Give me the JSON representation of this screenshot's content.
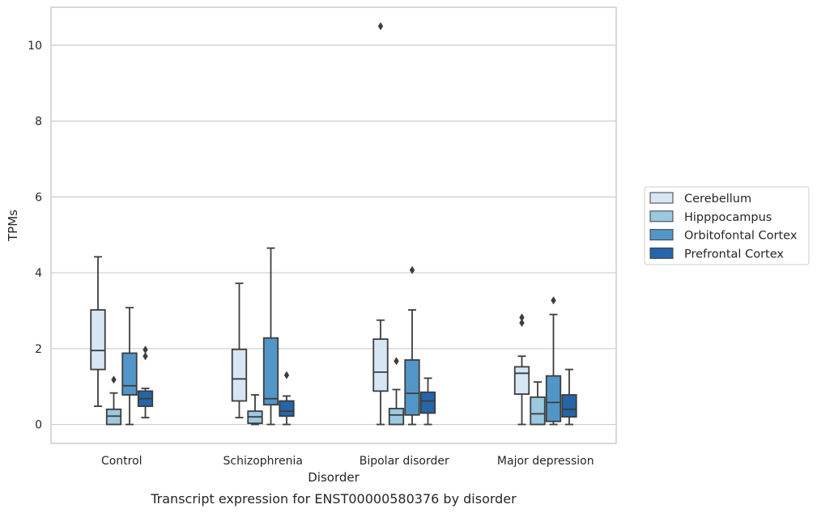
{
  "chart_data": {
    "type": "box",
    "caption": "Transcript expression for ENST00000580376 by disorder",
    "xlabel": "Disorder",
    "ylabel": "TPMs",
    "ylim": [
      -0.5,
      11.0
    ],
    "yticks": [
      0,
      2,
      4,
      6,
      8,
      10
    ],
    "grid": "horizontal",
    "legend_position": "right",
    "categories": [
      "Control",
      "Schizophrenia",
      "Bipolar disorder",
      "Major depression"
    ],
    "series": [
      {
        "name": "Cerebellum",
        "color": "#d6e6f4",
        "boxes": [
          {
            "whislo": 0.48,
            "q1": 1.45,
            "med": 1.95,
            "q3": 3.02,
            "whishi": 4.42,
            "fliers": []
          },
          {
            "whislo": 0.18,
            "q1": 0.62,
            "med": 1.2,
            "q3": 1.98,
            "whishi": 3.72,
            "fliers": []
          },
          {
            "whislo": 0.0,
            "q1": 0.88,
            "med": 1.38,
            "q3": 2.25,
            "whishi": 2.75,
            "fliers": [
              10.5
            ]
          },
          {
            "whislo": 0.0,
            "q1": 0.8,
            "med": 1.35,
            "q3": 1.52,
            "whishi": 1.8,
            "fliers": [
              2.82,
              2.68
            ]
          }
        ]
      },
      {
        "name": "Hipppocampus",
        "color": "#9cc8e0",
        "boxes": [
          {
            "whislo": 0.0,
            "q1": 0.0,
            "med": 0.22,
            "q3": 0.4,
            "whishi": 0.83,
            "fliers": [
              1.18
            ]
          },
          {
            "whislo": 0.0,
            "q1": 0.03,
            "med": 0.2,
            "q3": 0.35,
            "whishi": 0.78,
            "fliers": []
          },
          {
            "whislo": 0.0,
            "q1": 0.0,
            "med": 0.25,
            "q3": 0.42,
            "whishi": 0.92,
            "fliers": [
              1.67
            ]
          },
          {
            "whislo": 0.0,
            "q1": 0.0,
            "med": 0.28,
            "q3": 0.72,
            "whishi": 1.12,
            "fliers": []
          }
        ]
      },
      {
        "name": "Orbitofontal Cortex",
        "color": "#5296c8",
        "boxes": [
          {
            "whislo": 0.0,
            "q1": 0.78,
            "med": 1.02,
            "q3": 1.88,
            "whishi": 3.08,
            "fliers": []
          },
          {
            "whislo": 0.0,
            "q1": 0.52,
            "med": 0.68,
            "q3": 2.28,
            "whishi": 4.65,
            "fliers": []
          },
          {
            "whislo": 0.0,
            "q1": 0.25,
            "med": 0.82,
            "q3": 1.7,
            "whishi": 3.02,
            "fliers": [
              4.07
            ]
          },
          {
            "whislo": 0.0,
            "q1": 0.08,
            "med": 0.58,
            "q3": 1.28,
            "whishi": 2.9,
            "fliers": [
              3.27
            ]
          }
        ]
      },
      {
        "name": "Prefrontal Cortex",
        "color": "#2565a8",
        "boxes": [
          {
            "whislo": 0.18,
            "q1": 0.48,
            "med": 0.68,
            "q3": 0.88,
            "whishi": 0.95,
            "fliers": [
              1.97,
              1.8
            ]
          },
          {
            "whislo": 0.0,
            "q1": 0.22,
            "med": 0.35,
            "q3": 0.62,
            "whishi": 0.75,
            "fliers": [
              1.3
            ]
          },
          {
            "whislo": 0.0,
            "q1": 0.3,
            "med": 0.62,
            "q3": 0.85,
            "whishi": 1.22,
            "fliers": []
          },
          {
            "whislo": 0.0,
            "q1": 0.2,
            "med": 0.4,
            "q3": 0.78,
            "whishi": 1.45,
            "fliers": []
          }
        ]
      }
    ]
  }
}
